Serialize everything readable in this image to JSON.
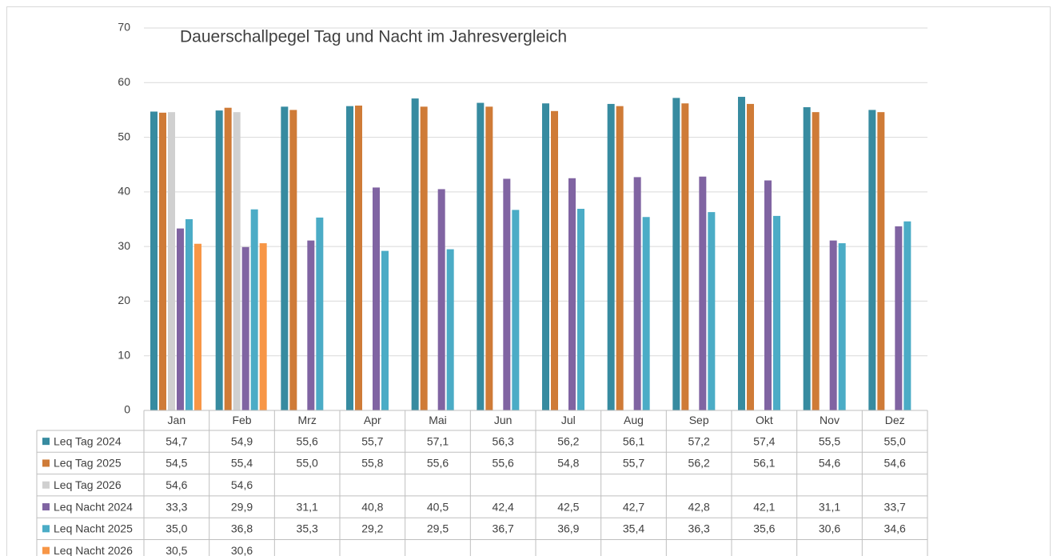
{
  "chart_data": {
    "type": "bar",
    "title": "Dauerschallpegel Tag und Nacht im Jahresvergleich",
    "categories": [
      "Jan",
      "Feb",
      "Mrz",
      "Apr",
      "Mai",
      "Jun",
      "Jul",
      "Aug",
      "Sep",
      "Okt",
      "Nov",
      "Dez"
    ],
    "ylim": [
      0,
      70
    ],
    "yticks": [
      0,
      10,
      20,
      30,
      40,
      50,
      60,
      70
    ],
    "grid": true,
    "series": [
      {
        "name": "Leq Tag 2024",
        "color": "#378ba0",
        "values": [
          54.7,
          54.9,
          55.6,
          55.7,
          57.1,
          56.3,
          56.2,
          56.1,
          57.2,
          57.4,
          55.5,
          55.0
        ],
        "value_labels": [
          "54,7",
          "54,9",
          "55,6",
          "55,7",
          "57,1",
          "56,3",
          "56,2",
          "56,1",
          "57,2",
          "57,4",
          "55,5",
          "55,0"
        ]
      },
      {
        "name": "Leq Tag 2025",
        "color": "#cf7b37",
        "values": [
          54.5,
          55.4,
          55.0,
          55.8,
          55.6,
          55.6,
          54.8,
          55.7,
          56.2,
          56.1,
          54.6,
          54.6
        ],
        "value_labels": [
          "54,5",
          "55,4",
          "55,0",
          "55,8",
          "55,6",
          "55,6",
          "54,8",
          "55,7",
          "56,2",
          "56,1",
          "54,6",
          "54,6"
        ]
      },
      {
        "name": "Leq Tag 2026",
        "color": "#d0d0d0",
        "values": [
          54.6,
          54.6,
          null,
          null,
          null,
          null,
          null,
          null,
          null,
          null,
          null,
          null
        ],
        "value_labels": [
          "54,6",
          "54,6",
          null,
          null,
          null,
          null,
          null,
          null,
          null,
          null,
          null,
          null
        ]
      },
      {
        "name": "Leq Nacht 2024",
        "color": "#8064a2",
        "values": [
          33.3,
          29.9,
          31.1,
          40.8,
          40.5,
          42.4,
          42.5,
          42.7,
          42.8,
          42.1,
          31.1,
          33.7
        ],
        "value_labels": [
          "33,3",
          "29,9",
          "31,1",
          "40,8",
          "40,5",
          "42,4",
          "42,5",
          "42,7",
          "42,8",
          "42,1",
          "31,1",
          "33,7"
        ]
      },
      {
        "name": "Leq Nacht 2025",
        "color": "#4bacc6",
        "values": [
          35.0,
          36.8,
          35.3,
          29.2,
          29.5,
          36.7,
          36.9,
          35.4,
          36.3,
          35.6,
          30.6,
          34.6
        ],
        "value_labels": [
          "35,0",
          "36,8",
          "35,3",
          "29,2",
          "29,5",
          "36,7",
          "36,9",
          "35,4",
          "36,3",
          "35,6",
          "30,6",
          "34,6"
        ]
      },
      {
        "name": "Leq Nacht 2026",
        "color": "#f79646",
        "values": [
          30.5,
          30.6,
          null,
          null,
          null,
          null,
          null,
          null,
          null,
          null,
          null,
          null
        ],
        "value_labels": [
          "30,5",
          "30,6",
          null,
          null,
          null,
          null,
          null,
          null,
          null,
          null,
          null,
          null
        ]
      }
    ]
  }
}
